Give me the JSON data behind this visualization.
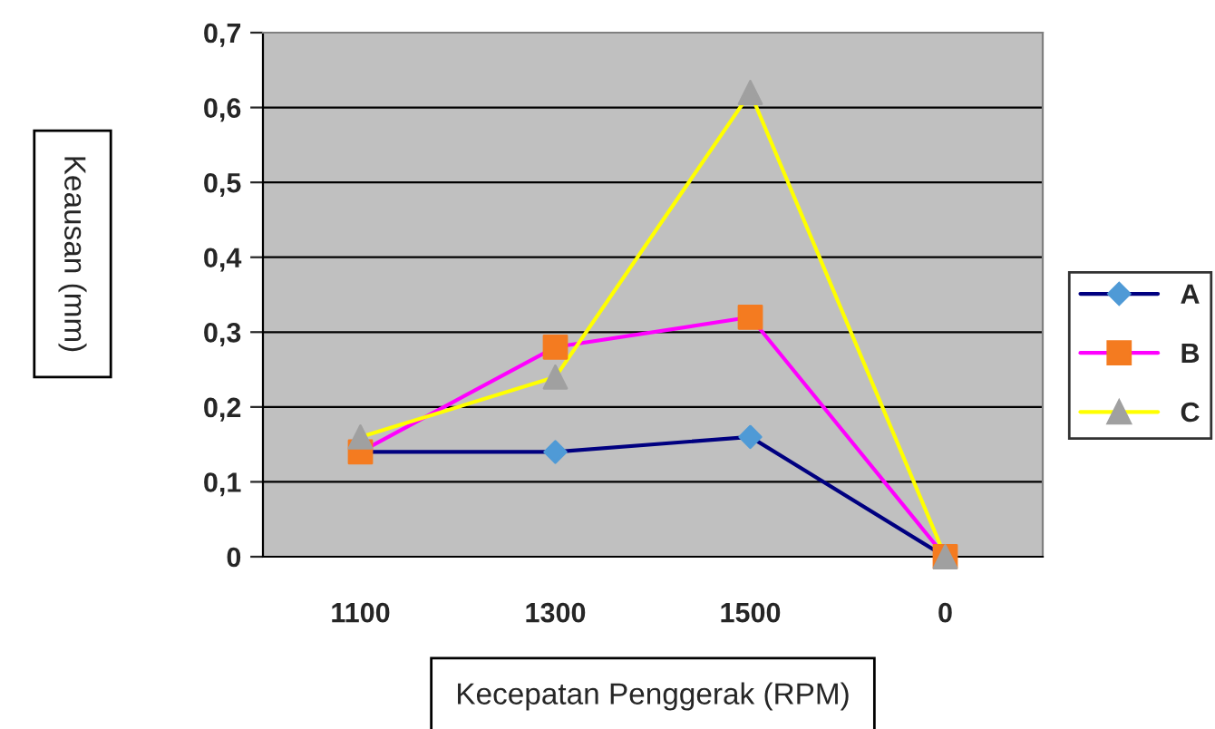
{
  "chart_data": {
    "type": "line",
    "xlabel": "Kecepatan Penggerak (RPM)",
    "ylabel": "Keausan (mm)",
    "categories": [
      "1100",
      "1300",
      "1500",
      "0"
    ],
    "series": [
      {
        "name": "A",
        "color": "#000080",
        "marker": "diamond",
        "colors": [
          "#4f9ad6",
          "#4f9ad6",
          "#4f9ad6",
          "#4f9ad6"
        ],
        "values": [
          0.14,
          0.14,
          0.16,
          0
        ]
      },
      {
        "name": "B",
        "color": "#ff00ff",
        "marker": "square",
        "colors": [
          "#f47b20",
          "#f47b20",
          "#f47b20",
          "#f47b20"
        ],
        "values": [
          0.14,
          0.28,
          0.32,
          0
        ]
      },
      {
        "name": "C",
        "color": "#ffff00",
        "marker": "triangle",
        "colors": [
          "#a0a0a0",
          "#a0a0a0",
          "#a0a0a0",
          "#a0a0a0"
        ],
        "values": [
          0.16,
          0.24,
          0.62,
          0
        ]
      }
    ],
    "ylim": [
      0,
      0.7
    ],
    "yticks": [
      {
        "value": 0,
        "label": "0"
      },
      {
        "value": 0.1,
        "label": "0,1"
      },
      {
        "value": 0.2,
        "label": "0,2"
      },
      {
        "value": 0.3,
        "label": "0,3"
      },
      {
        "value": 0.4,
        "label": "0,4"
      },
      {
        "value": 0.5,
        "label": "0,5"
      },
      {
        "value": 0.6,
        "label": "0,6"
      },
      {
        "value": 0.7,
        "label": "0,7"
      }
    ],
    "grid": "y",
    "legend": "right"
  }
}
